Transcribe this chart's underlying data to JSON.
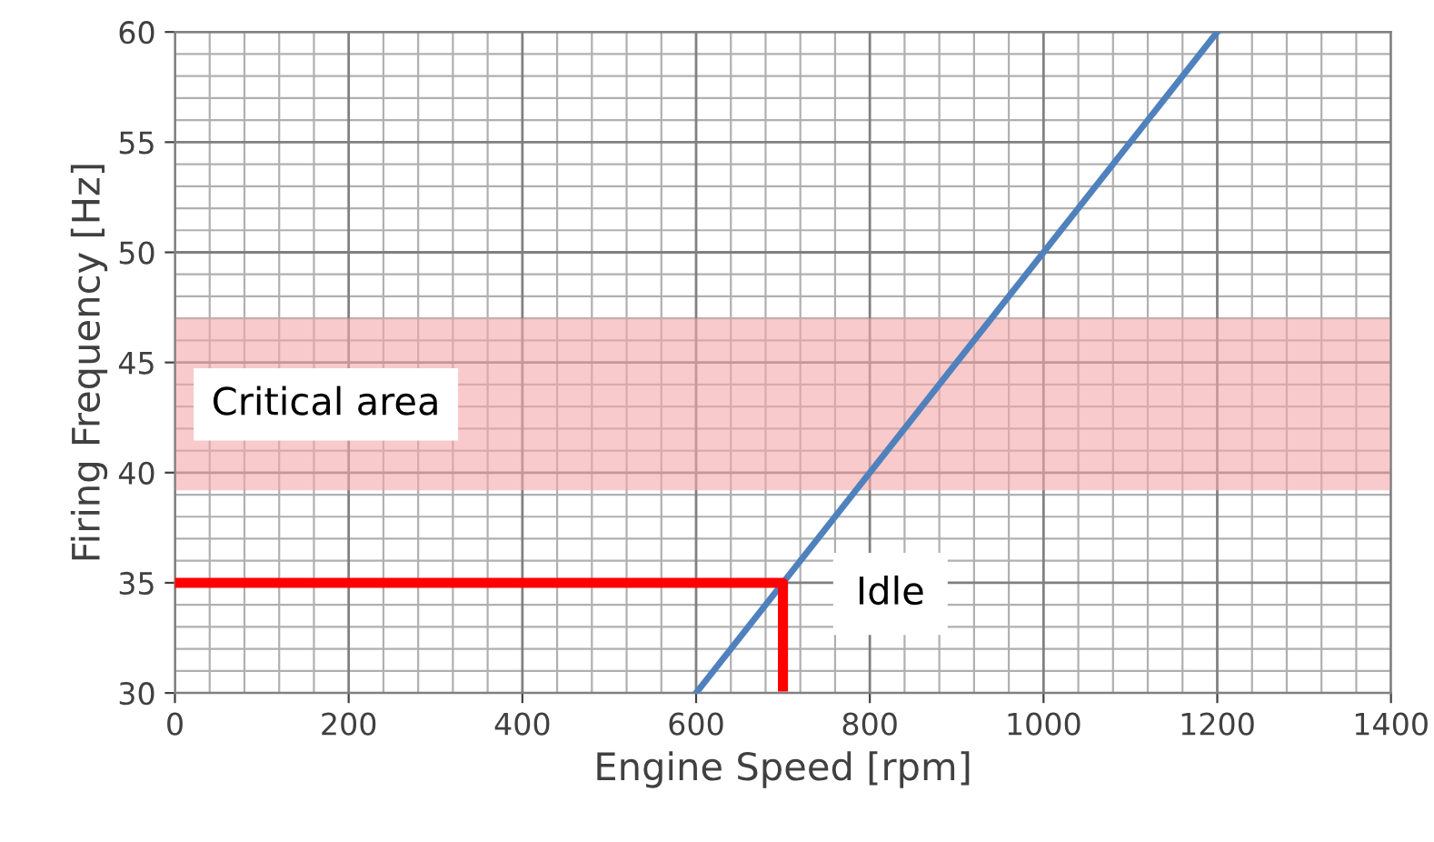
{
  "chart_data": {
    "type": "line",
    "xlabel": "Engine Speed [rpm]",
    "ylabel": "Firing Frequency [Hz]",
    "xlim": [
      0,
      1400
    ],
    "xticks": [
      0,
      200,
      400,
      600,
      800,
      1000,
      1200,
      1400
    ],
    "ylim": [
      30,
      60
    ],
    "yticks": [
      30,
      35,
      40,
      45,
      50,
      55,
      60
    ],
    "grid": true,
    "series": [
      {
        "color": "#4f81bd",
        "x": [
          600,
          1200
        ],
        "values": [
          30,
          60
        ]
      },
      {
        "color": "#ff0000",
        "x": [
          0,
          700,
          700
        ],
        "values": [
          35,
          35,
          30.3
        ]
      }
    ],
    "bands": [
      {
        "axis": "y",
        "from": 39.2,
        "to": 47,
        "label": "Critical area",
        "color": "#f4a6a8"
      }
    ],
    "annotations": [
      "Idle"
    ]
  }
}
